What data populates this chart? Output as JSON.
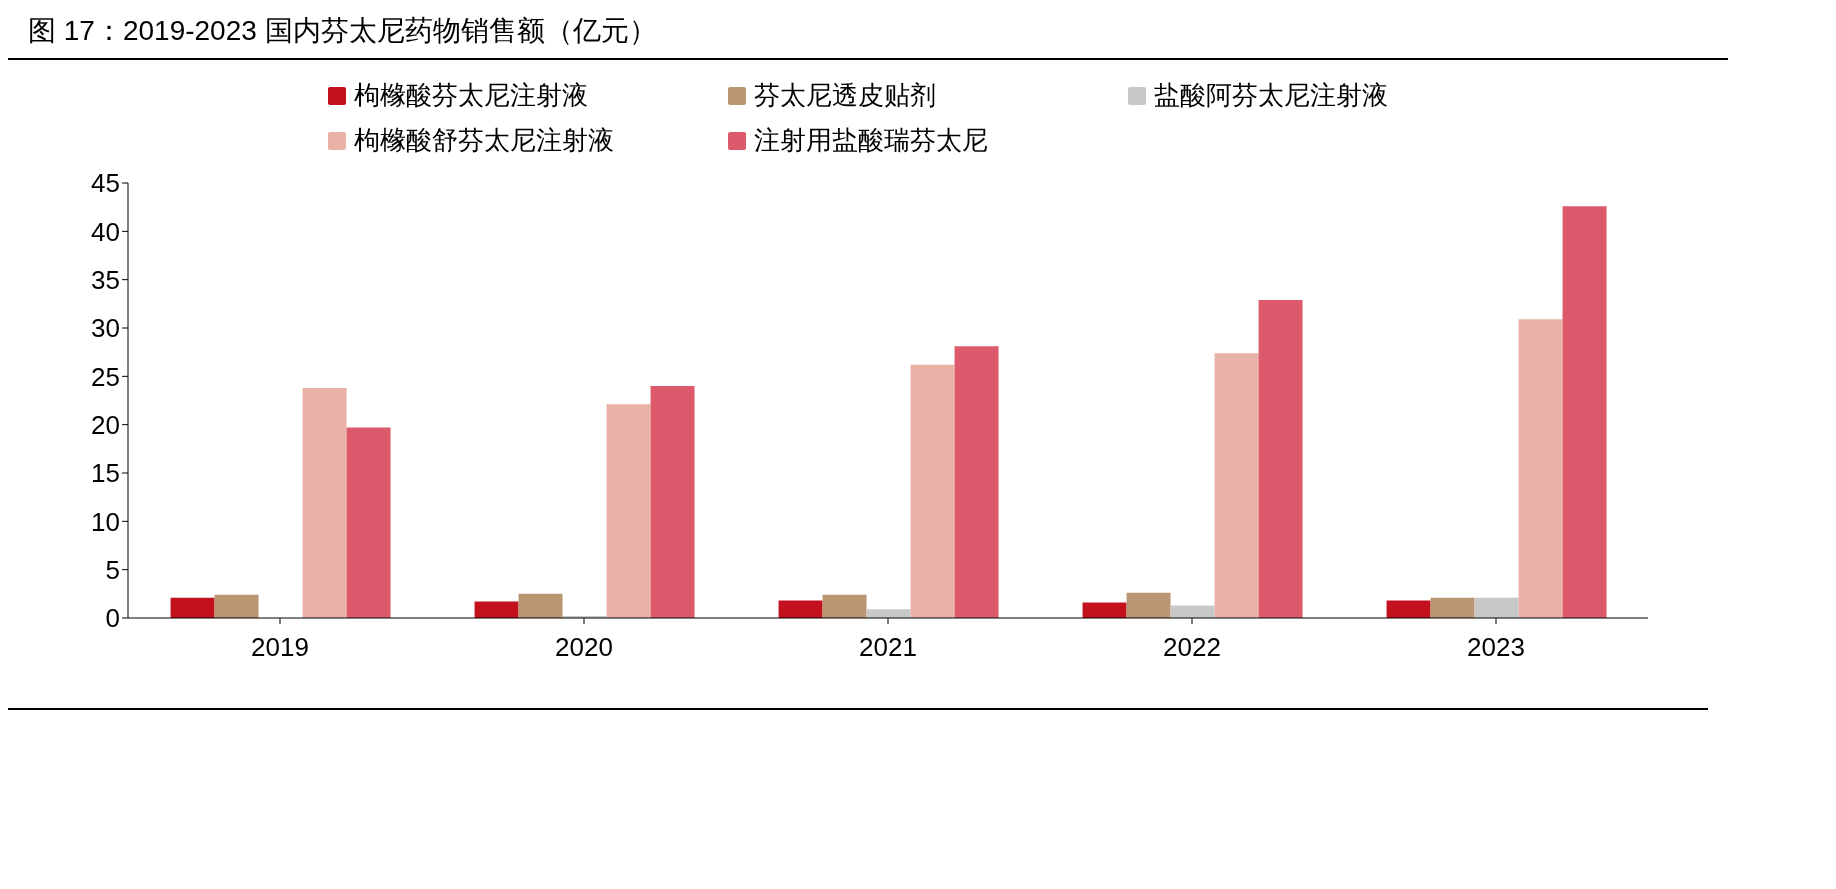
{
  "chart_data": {
    "type": "bar",
    "title": "图 17：2019-2023 国内芬太尼药物销售额（亿元）",
    "categories": [
      "2019",
      "2020",
      "2021",
      "2022",
      "2023"
    ],
    "series": [
      {
        "name": "枸橼酸芬太尼注射液",
        "color": "#c3111e",
        "values": [
          2.1,
          1.7,
          1.8,
          1.6,
          1.8
        ]
      },
      {
        "name": "芬太尼透皮贴剂",
        "color": "#ba9772",
        "values": [
          2.4,
          2.5,
          2.4,
          2.6,
          2.1
        ]
      },
      {
        "name": "盐酸阿芬太尼注射液",
        "color": "#c8c8c8",
        "values": [
          null,
          0.2,
          0.9,
          1.3,
          2.1
        ]
      },
      {
        "name": "枸橼酸舒芬太尼注射液",
        "color": "#e8b2a7",
        "values": [
          23.8,
          22.1,
          26.2,
          27.4,
          30.9
        ]
      },
      {
        "name": "注射用盐酸瑞芬太尼",
        "color": "#dc5a6b",
        "values": [
          19.7,
          24.0,
          28.1,
          32.9,
          42.6
        ]
      }
    ],
    "ylim": [
      0,
      45
    ],
    "yticks": [
      0,
      5,
      10,
      15,
      20,
      25,
      30,
      35,
      40,
      45
    ],
    "grid": false,
    "legend": "top"
  }
}
